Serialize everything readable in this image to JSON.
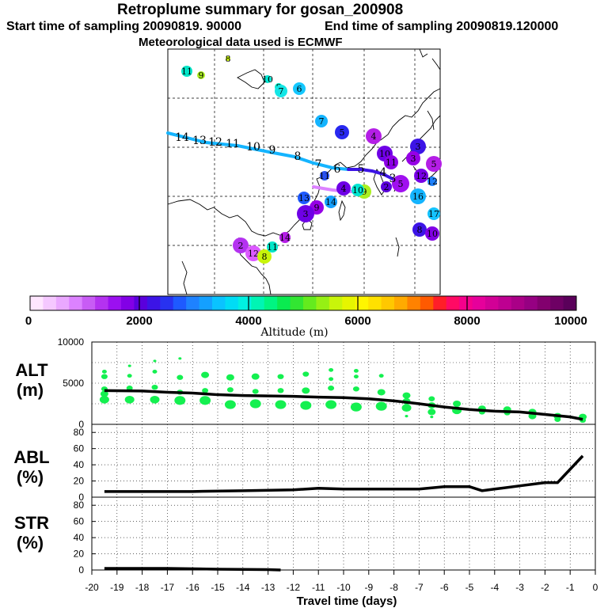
{
  "header": {
    "title": "Retroplume summary for gosan_200908",
    "start_label": "Start time of sampling 20090819. 90000",
    "end_label": "End time of sampling 20090819.120000",
    "met_label": "Meteorological data used is ECMWF"
  },
  "colorbar": {
    "ticks": [
      "0",
      "2000",
      "4000",
      "6000",
      "8000",
      "10000"
    ],
    "label": "Altitude (m)",
    "colors": [
      "#ffe6ff",
      "#f5c8ff",
      "#eaa8ff",
      "#dc82ff",
      "#c85cf5",
      "#b432f0",
      "#9b10f0",
      "#8200e6",
      "#5a00dc",
      "#3c14e6",
      "#2832f0",
      "#1e5aff",
      "#1e82ff",
      "#14a0ff",
      "#0ac3ff",
      "#00dcf5",
      "#00f0e1",
      "#00f5b4",
      "#00f582",
      "#0aeb50",
      "#32e632",
      "#64eb1e",
      "#96f014",
      "#c8f50a",
      "#e6f500",
      "#fff500",
      "#ffe100",
      "#ffc800",
      "#ffaa00",
      "#ff8200",
      "#ff5a00",
      "#ff1e28",
      "#ff0a64",
      "#f5008c",
      "#e6009b",
      "#d20096",
      "#be0091",
      "#aa0087",
      "#960082",
      "#82006e",
      "#6e0064",
      "#5a005a"
    ]
  },
  "map": {
    "labels": [
      {
        "t": "8",
        "c": "#c8f50a"
      },
      {
        "t": "11",
        "c": "#00e6c8"
      },
      {
        "t": "9",
        "c": "#aaf020"
      },
      {
        "t": "10",
        "c": "#00e6d2"
      },
      {
        "t": "8",
        "c": "#00ebc8"
      },
      {
        "t": "7",
        "c": "#14e6e6"
      },
      {
        "t": "6",
        "c": "#14c8ff"
      },
      {
        "t": "7",
        "c": "#14b4ff"
      },
      {
        "t": "5",
        "c": "#2828f0"
      },
      {
        "t": "4",
        "c": "#b41ee6"
      },
      {
        "t": "3",
        "c": "#3c14e6"
      },
      {
        "t": "10",
        "c": "#6e00e6"
      },
      {
        "t": "11",
        "c": "#8c00e6"
      },
      {
        "t": "3",
        "c": "#9600e6"
      },
      {
        "t": "5",
        "c": "#b41ee6"
      },
      {
        "t": "12",
        "c": "#7800e6"
      },
      {
        "t": "11",
        "c": "#2850f0"
      },
      {
        "t": "4",
        "c": "#6e00e6"
      },
      {
        "t": "12",
        "c": "#1e82ff"
      },
      {
        "t": "5",
        "c": "#a010f0"
      },
      {
        "t": "2",
        "c": "#5a00dc"
      },
      {
        "t": "13",
        "c": "#1e5aff"
      },
      {
        "t": "14",
        "c": "#14a0ff"
      },
      {
        "t": "16",
        "c": "#14b4ff"
      },
      {
        "t": "17",
        "c": "#14c3ff"
      },
      {
        "t": "8",
        "c": "#3c14e6"
      },
      {
        "t": "10",
        "c": "#8200e6"
      },
      {
        "t": "9",
        "c": "#9600e6"
      },
      {
        "t": "3",
        "c": "#6e00e6"
      },
      {
        "t": "14",
        "c": "#b41ee6"
      },
      {
        "t": "2",
        "c": "#b432f0"
      },
      {
        "t": "12",
        "c": "#dc5aff"
      }
    ],
    "track_labels": [
      "14",
      "13",
      "12",
      "11",
      "10",
      "9",
      "8",
      "7",
      "6",
      "5",
      "4",
      "3"
    ]
  },
  "chart_data": [
    {
      "type": "scatter",
      "panel": "ALT (m)",
      "ylabel": "ALT\n(m)",
      "y_label_line1": "ALT",
      "y_label_line2": "(m)",
      "xlim": [
        -20,
        0
      ],
      "ylim": [
        0,
        10000
      ],
      "yticks": [
        "10000",
        "5000",
        "0"
      ],
      "mean_line": {
        "x": [
          -19.5,
          -18,
          -17,
          -16,
          -15,
          -14,
          -13,
          -12,
          -11,
          -10,
          -9,
          -8,
          -7,
          -6,
          -5,
          -4.5,
          -4,
          -3,
          -2,
          -1,
          -0.5
        ],
        "y": [
          4100,
          4050,
          3900,
          3800,
          3600,
          3500,
          3450,
          3400,
          3300,
          3250,
          3100,
          2850,
          2500,
          2100,
          1800,
          1700,
          1600,
          1500,
          1200,
          900,
          600
        ]
      },
      "scatter_points": [
        [
          -19.5,
          6400,
          3
        ],
        [
          -19.5,
          5800,
          4
        ],
        [
          -19.5,
          4300,
          4
        ],
        [
          -19.5,
          3700,
          5
        ],
        [
          -19.5,
          3000,
          6
        ],
        [
          -18.5,
          7100,
          2
        ],
        [
          -18.5,
          5900,
          3
        ],
        [
          -18.5,
          4400,
          4
        ],
        [
          -18.5,
          3000,
          6
        ],
        [
          -17.5,
          7700,
          2
        ],
        [
          -17.5,
          6400,
          3
        ],
        [
          -17.5,
          4500,
          4
        ],
        [
          -17.5,
          3000,
          6
        ],
        [
          -16.5,
          8000,
          2
        ],
        [
          -16.5,
          5700,
          4
        ],
        [
          -16.5,
          3900,
          4
        ],
        [
          -16.5,
          2900,
          7
        ],
        [
          -15.5,
          6000,
          5
        ],
        [
          -15.5,
          4100,
          4
        ],
        [
          -15.5,
          2900,
          7
        ],
        [
          -14.5,
          5700,
          5
        ],
        [
          -14.5,
          4200,
          4
        ],
        [
          -14.5,
          2400,
          7
        ],
        [
          -13.5,
          5800,
          5
        ],
        [
          -13.5,
          4000,
          4
        ],
        [
          -13.5,
          2500,
          7
        ],
        [
          -12.5,
          5800,
          4
        ],
        [
          -12.5,
          4100,
          4
        ],
        [
          -12.5,
          2400,
          7
        ],
        [
          -11.5,
          6100,
          4
        ],
        [
          -11.5,
          4100,
          5
        ],
        [
          -11.5,
          2300,
          7
        ],
        [
          -10.5,
          6600,
          3
        ],
        [
          -10.5,
          5500,
          3
        ],
        [
          -10.5,
          4400,
          4
        ],
        [
          -10.5,
          2400,
          7
        ],
        [
          -9.5,
          6500,
          3
        ],
        [
          -9.5,
          5800,
          3
        ],
        [
          -9.5,
          4300,
          4
        ],
        [
          -9.5,
          2100,
          7
        ],
        [
          -8.5,
          5900,
          3
        ],
        [
          -8.5,
          3900,
          5
        ],
        [
          -8.5,
          2200,
          7
        ],
        [
          -7.5,
          3500,
          5
        ],
        [
          -7.5,
          2800,
          5
        ],
        [
          -7.5,
          2000,
          6
        ],
        [
          -7.5,
          1000,
          2
        ],
        [
          -6.5,
          3100,
          4
        ],
        [
          -6.5,
          2300,
          5
        ],
        [
          -6.5,
          1500,
          5
        ],
        [
          -6.5,
          900,
          2
        ],
        [
          -5.5,
          2500,
          5
        ],
        [
          -5.5,
          1700,
          6
        ],
        [
          -4.5,
          1900,
          5
        ],
        [
          -4.5,
          1500,
          4
        ],
        [
          -3.5,
          1800,
          5
        ],
        [
          -3.5,
          1400,
          4
        ],
        [
          -2.5,
          1500,
          5
        ],
        [
          -2.5,
          1000,
          5
        ],
        [
          -1.5,
          1000,
          5
        ],
        [
          -1.5,
          600,
          4
        ],
        [
          -0.5,
          900,
          5
        ],
        [
          -0.5,
          500,
          4
        ]
      ]
    },
    {
      "type": "line",
      "panel": "ABL (%)",
      "ylabel": "ABL\n(%)",
      "y_label_line1": "ABL",
      "y_label_line2": "(%)",
      "xlim": [
        -20,
        0
      ],
      "ylim": [
        0,
        90
      ],
      "yticks": [
        "80",
        "60",
        "40",
        "20",
        "0"
      ],
      "x": [
        -19.5,
        -18,
        -16,
        -14,
        -12,
        -11,
        -10,
        -9,
        -8,
        -7,
        -6,
        -5,
        -4.5,
        -4,
        -3,
        -2,
        -1.5,
        -0.5
      ],
      "values": [
        7,
        7,
        7,
        8,
        9,
        11,
        10,
        10,
        10,
        10,
        13,
        13,
        8,
        10,
        14,
        18,
        18,
        51
      ]
    },
    {
      "type": "line",
      "panel": "STR (%)",
      "ylabel": "STR\n(%)",
      "y_label_line1": "STR",
      "y_label_line2": "(%)",
      "xlim": [
        -20,
        0
      ],
      "ylim": [
        0,
        90
      ],
      "yticks": [
        "80",
        "60",
        "40",
        "20",
        "0"
      ],
      "x": [
        -19.5,
        -17,
        -15,
        -13,
        -12.5
      ],
      "values": [
        2,
        2,
        1,
        0.5,
        0
      ],
      "xticks": [
        "-20",
        "-19",
        "-18",
        "-17",
        "-16",
        "-15",
        "-14",
        "-13",
        "-12",
        "-11",
        "-10",
        "-9",
        "-8",
        "-7",
        "-6",
        "-5",
        "-4",
        "-3",
        "-2",
        "-1",
        "0"
      ],
      "xlabel": "Travel time (days)"
    }
  ]
}
